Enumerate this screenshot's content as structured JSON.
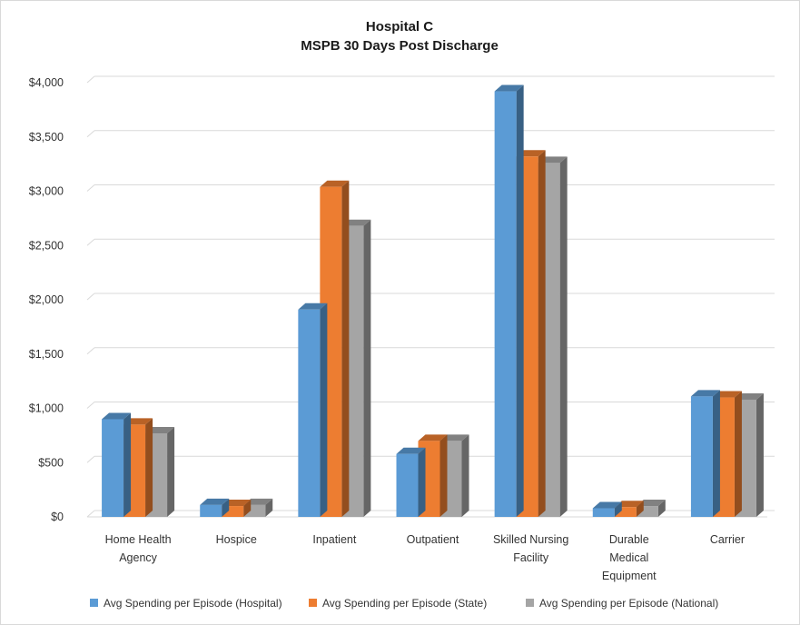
{
  "chart_data": {
    "type": "bar",
    "title_lines": [
      "Hospital C",
      "MSPB 30 Days Post Discharge"
    ],
    "categories": [
      [
        "Home Health",
        "Agency"
      ],
      [
        "Hospice"
      ],
      [
        "Inpatient"
      ],
      [
        "Outpatient"
      ],
      [
        "Skilled Nursing",
        "Facility"
      ],
      [
        "Durable",
        "Medical",
        "Equipment"
      ],
      [
        "Carrier"
      ]
    ],
    "series": [
      {
        "name": "Avg Spending per Episode (Hospital)",
        "color": "#5b9bd5",
        "values": [
          900,
          110,
          1910,
          580,
          3920,
          80,
          1110
        ]
      },
      {
        "name": "Avg Spending per Episode (State)",
        "color": "#ed7d31",
        "values": [
          850,
          100,
          3040,
          700,
          3320,
          90,
          1100
        ]
      },
      {
        "name": "Avg Spending per Episode (National)",
        "color": "#a5a5a5",
        "values": [
          770,
          110,
          2680,
          700,
          3260,
          100,
          1080
        ]
      }
    ],
    "y_ticks": [
      "$0",
      "$500",
      "$1,000",
      "$1,500",
      "$2,000",
      "$2,500",
      "$3,000",
      "$3,500",
      "$4,000"
    ],
    "ylim": [
      0,
      4000
    ],
    "grid": true,
    "legend_position": "bottom",
    "style": "3d-clustered-column"
  }
}
